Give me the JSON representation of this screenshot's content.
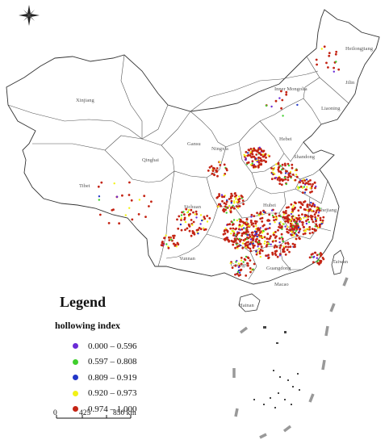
{
  "map": {
    "compass_icon": "north-arrow-compass-icon",
    "province_labels": [
      "Heilongjiang",
      "Jilin",
      "Liaoning",
      "Inner Mongolia",
      "Xinjiang",
      "Gansu",
      "Ningxia",
      "Hebei",
      "Shandong",
      "Qinghai",
      "Tibet",
      "Sichuan",
      "Hubei",
      "Zhejiang",
      "Yunnan",
      "Guangxi",
      "Guangdong",
      "Macao",
      "Hainan",
      "Taiwan"
    ]
  },
  "legend": {
    "title": "Legend",
    "subtitle": "hollowing index",
    "classes": [
      {
        "label": "0.000 – 0.596",
        "color": "#6a2bd6"
      },
      {
        "label": "0.597 – 0.808",
        "color": "#3fcf2d"
      },
      {
        "label": "0.809 – 0.919",
        "color": "#2236c8"
      },
      {
        "label": "0.920 – 0.973",
        "color": "#f2f216"
      },
      {
        "label": "0.974 – 1.000",
        "color": "#c42414"
      }
    ]
  },
  "scale_bar": {
    "labels": [
      "0",
      "425",
      "850 km"
    ]
  }
}
